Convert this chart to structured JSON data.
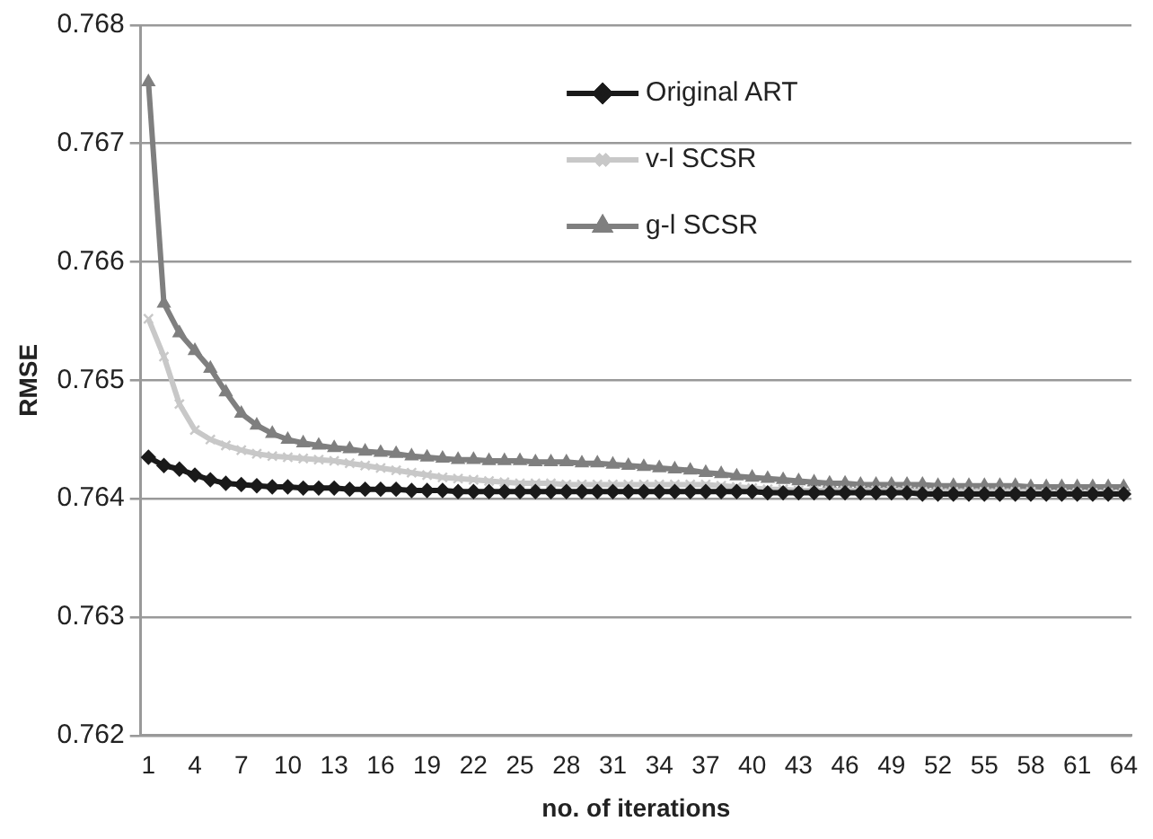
{
  "chart_data": {
    "type": "line",
    "xlabel": "no. of iterations",
    "ylabel": "RMSE",
    "categories": [
      "1",
      null,
      null,
      "4",
      null,
      null,
      "7",
      null,
      null,
      "10",
      null,
      null,
      "13",
      null,
      null,
      "16",
      null,
      null,
      "19",
      null,
      null,
      "22",
      null,
      null,
      "25",
      null,
      null,
      "28",
      null,
      null,
      "31",
      null,
      null,
      "34",
      null,
      null,
      "37",
      null,
      null,
      "40",
      null,
      null,
      "43",
      null,
      null,
      "46",
      null,
      null,
      "49",
      null,
      null,
      "52",
      null,
      null,
      "55",
      null,
      null,
      "58",
      null,
      null,
      "61",
      null,
      null,
      "64"
    ],
    "series": [
      {
        "name": "Original ART",
        "color": "#1a1a1a",
        "marker": "diamond",
        "values": [
          0.76435,
          0.76428,
          0.76425,
          0.7642,
          0.76416,
          0.76413,
          0.76412,
          0.76411,
          0.7641,
          0.7641,
          0.76409,
          0.76409,
          0.76409,
          0.76408,
          0.76408,
          0.76408,
          0.76408,
          0.76407,
          0.76407,
          0.76407,
          0.76406,
          0.76406,
          0.76406,
          0.76406,
          0.76406,
          0.76406,
          0.76406,
          0.76406,
          0.76406,
          0.76406,
          0.76406,
          0.76406,
          0.76406,
          0.76406,
          0.76406,
          0.76406,
          0.76406,
          0.76406,
          0.76406,
          0.76406,
          0.76405,
          0.76405,
          0.76405,
          0.76405,
          0.76405,
          0.76405,
          0.76405,
          0.76405,
          0.76405,
          0.76405,
          0.76404,
          0.76404,
          0.76404,
          0.76404,
          0.76404,
          0.76404,
          0.76404,
          0.76404,
          0.76404,
          0.76404,
          0.76404,
          0.76404,
          0.76404,
          0.76404
        ]
      },
      {
        "name": "v-l SCSR",
        "color": "#c8c8c8",
        "marker": "cross",
        "values": [
          0.76552,
          0.7652,
          0.7648,
          0.76458,
          0.7645,
          0.76445,
          0.76441,
          0.76438,
          0.76436,
          0.76435,
          0.76434,
          0.76433,
          0.76432,
          0.7643,
          0.76428,
          0.76426,
          0.76424,
          0.76422,
          0.7642,
          0.76418,
          0.76417,
          0.76416,
          0.76415,
          0.76414,
          0.76413,
          0.76413,
          0.76413,
          0.76412,
          0.76412,
          0.76412,
          0.76412,
          0.76412,
          0.76412,
          0.76412,
          0.76412,
          0.76412,
          0.76412,
          0.76411,
          0.7641,
          0.76409,
          0.76408,
          0.76408,
          0.76407,
          0.76407,
          0.76407,
          0.76407,
          0.76407,
          0.76407,
          0.76407,
          0.76407,
          0.76406,
          0.76406,
          0.76406,
          0.76406,
          0.76406,
          0.76406,
          0.76406,
          0.76406,
          0.76405,
          0.76405,
          0.76405,
          0.76405,
          0.76405,
          0.76405
        ]
      },
      {
        "name": "g-l SCSR",
        "color": "#7f7f7f",
        "marker": "triangle",
        "values": [
          0.76752,
          0.76565,
          0.7654,
          0.76525,
          0.7651,
          0.7649,
          0.76472,
          0.76462,
          0.76455,
          0.7645,
          0.76447,
          0.76445,
          0.76443,
          0.76442,
          0.7644,
          0.76439,
          0.76438,
          0.76436,
          0.76435,
          0.76434,
          0.76433,
          0.76433,
          0.76432,
          0.76432,
          0.76432,
          0.76431,
          0.76431,
          0.76431,
          0.7643,
          0.7643,
          0.76429,
          0.76428,
          0.76427,
          0.76426,
          0.76425,
          0.76424,
          0.76422,
          0.76421,
          0.76419,
          0.76418,
          0.76417,
          0.76416,
          0.76415,
          0.76414,
          0.76413,
          0.76413,
          0.76412,
          0.76412,
          0.76412,
          0.76412,
          0.76412,
          0.76411,
          0.76411,
          0.76411,
          0.76411,
          0.76411,
          0.76411,
          0.7641,
          0.7641,
          0.7641,
          0.7641,
          0.7641,
          0.7641,
          0.7641
        ]
      }
    ],
    "ylim": [
      0.762,
      0.768
    ],
    "yticks": [
      0.762,
      0.763,
      0.764,
      0.765,
      0.766,
      0.767,
      0.768
    ],
    "grid": "y",
    "legend": "top right",
    "line_style": "solid"
  }
}
